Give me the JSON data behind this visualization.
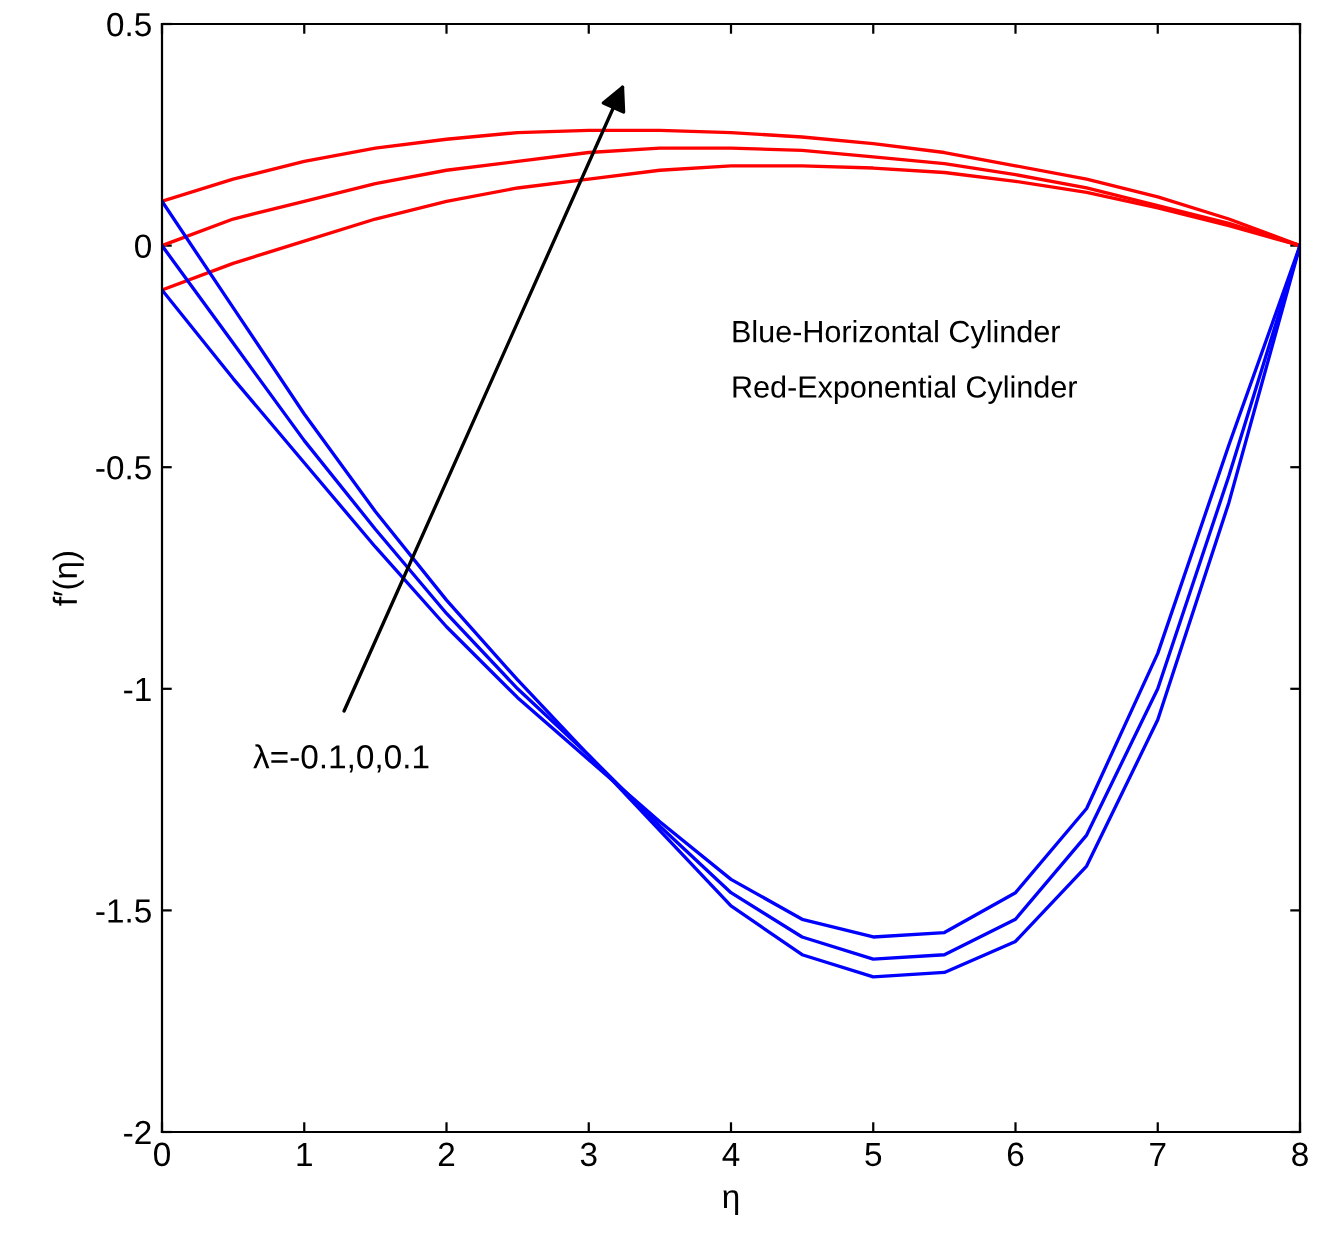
{
  "chart_data": {
    "type": "line",
    "xlabel": "η",
    "ylabel": "f′(η)",
    "x": [
      0,
      0.5,
      1,
      1.5,
      2,
      2.5,
      3,
      3.5,
      4,
      4.5,
      5,
      5.5,
      6,
      6.5,
      7,
      7.5,
      8
    ],
    "series": [
      {
        "color": "#ff0000",
        "values": [
          0.1,
          0.15,
          0.19,
          0.22,
          0.24,
          0.255,
          0.26,
          0.26,
          0.255,
          0.245,
          0.23,
          0.21,
          0.18,
          0.15,
          0.11,
          0.06,
          0
        ]
      },
      {
        "color": "#ff0000",
        "values": [
          0,
          0.06,
          0.1,
          0.14,
          0.17,
          0.19,
          0.21,
          0.22,
          0.22,
          0.215,
          0.2,
          0.185,
          0.16,
          0.13,
          0.09,
          0.05,
          0
        ]
      },
      {
        "color": "#ff0000",
        "values": [
          -0.1,
          -0.04,
          0.01,
          0.06,
          0.1,
          0.13,
          0.15,
          0.17,
          0.18,
          0.18,
          0.175,
          0.165,
          0.145,
          0.12,
          0.085,
          0.045,
          0
        ]
      },
      {
        "color": "#0000ff",
        "values": [
          -0.1,
          -0.3,
          -0.49,
          -0.68,
          -0.86,
          -1.02,
          -1.16,
          -1.3,
          -1.43,
          -1.52,
          -1.56,
          -1.55,
          -1.46,
          -1.27,
          -0.92,
          -0.45,
          0
        ]
      },
      {
        "color": "#0000ff",
        "values": [
          0,
          -0.22,
          -0.44,
          -0.64,
          -0.83,
          -1.0,
          -1.15,
          -1.31,
          -1.46,
          -1.56,
          -1.61,
          -1.6,
          -1.52,
          -1.33,
          -1.0,
          -0.52,
          0
        ]
      },
      {
        "color": "#0000ff",
        "values": [
          0.1,
          -0.14,
          -0.38,
          -0.6,
          -0.8,
          -0.98,
          -1.15,
          -1.32,
          -1.49,
          -1.6,
          -1.65,
          -1.64,
          -1.57,
          -1.4,
          -1.07,
          -0.58,
          0
        ]
      }
    ],
    "xlim": [
      0,
      8
    ],
    "xticks": [
      0,
      1,
      2,
      3,
      4,
      5,
      6,
      7,
      8
    ],
    "ylim": [
      -2,
      0.5
    ],
    "yticks": [
      -2,
      -1.5,
      -1,
      -0.5,
      0,
      0.5
    ],
    "grid": false,
    "legend": false,
    "marker": "none",
    "line_style": "solid",
    "annotations": [
      "λ=-0.1,0,0.1",
      "Blue-Horizontal Cylinder",
      "Red-Exponential Cylinder"
    ]
  }
}
